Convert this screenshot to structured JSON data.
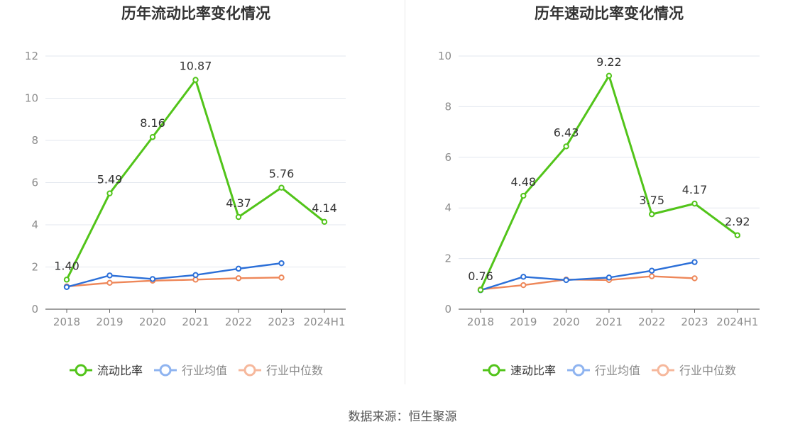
{
  "colors": {
    "main_series": "#52c41a",
    "industry_avg": "#2b6fd8",
    "industry_median": "#ee8759",
    "grid": "#e3e7ef",
    "axis": "#666666",
    "tick_text": "#8c8c8c"
  },
  "source": "数据来源：恒生聚源",
  "chart_data": [
    {
      "type": "line",
      "title": "历年流动比率变化情况",
      "categories": [
        "2018",
        "2019",
        "2020",
        "2021",
        "2022",
        "2023",
        "2024H1"
      ],
      "ylim": [
        0,
        12
      ],
      "yticks": [
        0,
        2,
        4,
        6,
        8,
        10,
        12
      ],
      "grid": true,
      "legend_position": "bottom",
      "series": [
        {
          "name": "流动比率",
          "values": [
            1.4,
            5.49,
            8.16,
            10.87,
            4.37,
            5.76,
            4.14
          ],
          "labels": [
            "1.40",
            "5.49",
            "8.16",
            "10.87",
            "4.37",
            "5.76",
            "4.14"
          ]
        },
        {
          "name": "行业均值",
          "values": [
            1.05,
            1.6,
            1.43,
            1.62,
            1.92,
            2.18,
            null
          ]
        },
        {
          "name": "行业中位数",
          "values": [
            1.08,
            1.25,
            1.35,
            1.4,
            1.47,
            1.5,
            null
          ]
        }
      ]
    },
    {
      "type": "line",
      "title": "历年速动比率变化情况",
      "categories": [
        "2018",
        "2019",
        "2020",
        "2021",
        "2022",
        "2023",
        "2024H1"
      ],
      "ylim": [
        0,
        10
      ],
      "yticks": [
        0,
        2,
        4,
        6,
        8,
        10
      ],
      "grid": true,
      "legend_position": "bottom",
      "series": [
        {
          "name": "速动比率",
          "values": [
            0.76,
            4.48,
            6.43,
            9.22,
            3.75,
            4.17,
            2.92
          ],
          "labels": [
            "0.76",
            "4.48",
            "6.43",
            "9.22",
            "3.75",
            "4.17",
            "2.92"
          ]
        },
        {
          "name": "行业均值",
          "values": [
            0.75,
            1.28,
            1.15,
            1.25,
            1.52,
            1.86,
            null
          ]
        },
        {
          "name": "行业中位数",
          "values": [
            0.78,
            0.95,
            1.17,
            1.15,
            1.3,
            1.22,
            null
          ]
        }
      ]
    }
  ]
}
